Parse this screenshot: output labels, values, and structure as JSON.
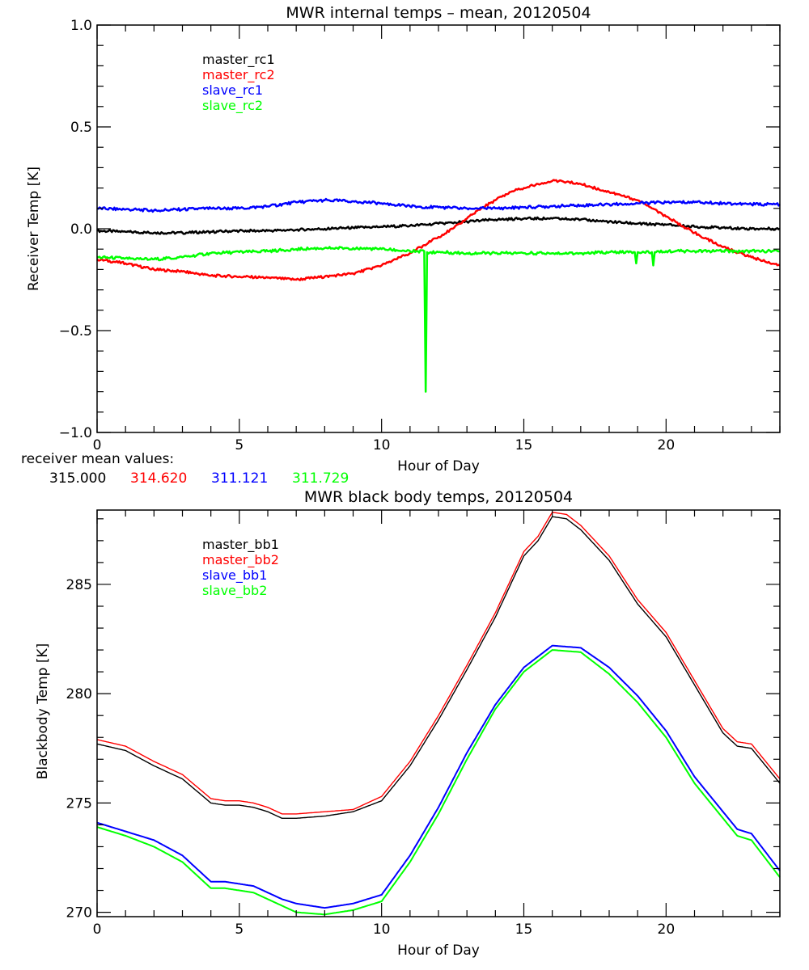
{
  "chart_data": [
    {
      "type": "line",
      "title": "MWR internal temps – mean, 20120504",
      "xlabel": "Hour of Day",
      "ylabel": "Receiver Temp [K]",
      "xlim": [
        0,
        24
      ],
      "ylim": [
        -1.0,
        1.0
      ],
      "x_ticks": [
        0,
        5,
        10,
        15,
        20
      ],
      "x_tick_labels": [
        "0",
        "5",
        "10",
        "15",
        "20"
      ],
      "y_ticks": [
        1.0,
        0.5,
        0.0,
        -0.5,
        -1.0
      ],
      "y_tick_labels": [
        "1.0",
        "0.5",
        "0.0",
        "−0.5",
        "−1.0"
      ],
      "x_minor_step": 1,
      "y_minor_step": 0.1,
      "grid": false,
      "legend_placement": "top-left",
      "series": [
        {
          "name": "master_rc1",
          "color": "#000000",
          "x": [
            0,
            1,
            2,
            3,
            4,
            5,
            6,
            7,
            8,
            9,
            10,
            11,
            12,
            13,
            14,
            15,
            16,
            17,
            18,
            19,
            20,
            21,
            22,
            23,
            24
          ],
          "values": [
            -0.01,
            -0.015,
            -0.02,
            -0.02,
            -0.015,
            -0.01,
            -0.01,
            -0.005,
            0.0,
            0.005,
            0.01,
            0.015,
            0.025,
            0.035,
            0.045,
            0.05,
            0.05,
            0.045,
            0.035,
            0.025,
            0.02,
            0.01,
            0.005,
            0.0,
            0.0
          ]
        },
        {
          "name": "master_rc2",
          "color": "#ff0000",
          "x": [
            0,
            1,
            2,
            3,
            4,
            5,
            6,
            7,
            8,
            9,
            10,
            10.5,
            11,
            11.5,
            12,
            12.5,
            13,
            13.5,
            14,
            14.5,
            15,
            15.5,
            16,
            16.5,
            17,
            18,
            19,
            19.5,
            20,
            21,
            22,
            23,
            24
          ],
          "values": [
            -0.15,
            -0.17,
            -0.2,
            -0.21,
            -0.23,
            -0.235,
            -0.24,
            -0.25,
            -0.235,
            -0.22,
            -0.18,
            -0.15,
            -0.12,
            -0.08,
            -0.04,
            0.0,
            0.05,
            0.1,
            0.14,
            0.18,
            0.2,
            0.22,
            0.235,
            0.23,
            0.22,
            0.18,
            0.14,
            0.1,
            0.06,
            -0.02,
            -0.09,
            -0.14,
            -0.18
          ]
        },
        {
          "name": "slave_rc1",
          "color": "#0000ff",
          "x": [
            0,
            1,
            2,
            3,
            4,
            5,
            6,
            7,
            8,
            9,
            10,
            11,
            12,
            13,
            14,
            15,
            16,
            17,
            18,
            19,
            20,
            21,
            22,
            23,
            24
          ],
          "values": [
            0.1,
            0.095,
            0.09,
            0.095,
            0.1,
            0.1,
            0.11,
            0.13,
            0.14,
            0.135,
            0.125,
            0.11,
            0.105,
            0.1,
            0.1,
            0.105,
            0.11,
            0.115,
            0.12,
            0.125,
            0.13,
            0.13,
            0.125,
            0.12,
            0.12
          ]
        },
        {
          "name": "slave_rc2",
          "color": "#00ff00",
          "x": [
            0,
            1,
            2,
            3,
            4,
            5,
            6,
            7,
            8,
            9,
            10,
            11,
            11.5,
            11.55,
            11.6,
            12,
            13,
            14,
            15,
            16,
            17,
            18,
            18.9,
            18.95,
            19,
            19.5,
            19.55,
            19.6,
            20,
            21,
            22,
            23,
            24
          ],
          "values": [
            -0.14,
            -0.145,
            -0.15,
            -0.14,
            -0.12,
            -0.115,
            -0.11,
            -0.1,
            -0.095,
            -0.095,
            -0.1,
            -0.11,
            -0.11,
            -0.8,
            -0.115,
            -0.115,
            -0.12,
            -0.12,
            -0.12,
            -0.12,
            -0.12,
            -0.115,
            -0.115,
            -0.17,
            -0.115,
            -0.115,
            -0.18,
            -0.115,
            -0.11,
            -0.11,
            -0.11,
            -0.11,
            -0.11
          ]
        }
      ],
      "annotation": {
        "label": "receiver mean values:",
        "values": [
          {
            "text": "315.000",
            "color": "#000000"
          },
          {
            "text": "314.620",
            "color": "#ff0000"
          },
          {
            "text": "311.121",
            "color": "#0000ff"
          },
          {
            "text": "311.729",
            "color": "#00ff00"
          }
        ]
      }
    },
    {
      "type": "line",
      "title": "MWR black body temps, 20120504",
      "xlabel": "Hour of Day",
      "ylabel": "Blackbody Temp [K]",
      "xlim": [
        0,
        24
      ],
      "ylim": [
        269.8,
        288.4
      ],
      "x_ticks": [
        0,
        5,
        10,
        15,
        20
      ],
      "x_tick_labels": [
        "0",
        "5",
        "10",
        "15",
        "20"
      ],
      "y_ticks": [
        270,
        275,
        280,
        285
      ],
      "y_tick_labels": [
        "270",
        "275",
        "280",
        "285"
      ],
      "x_minor_step": 1,
      "y_minor_step": 1,
      "grid": false,
      "legend_placement": "top-left",
      "series": [
        {
          "name": "master_bb1",
          "color": "#000000",
          "x": [
            0,
            1,
            2,
            3,
            4,
            4.5,
            5,
            5.5,
            6,
            6.5,
            7,
            8,
            9,
            10,
            11,
            12,
            13,
            14,
            15,
            15.5,
            16,
            16.5,
            17,
            18,
            19,
            20,
            21,
            22,
            22.5,
            23,
            24
          ],
          "values": [
            277.7,
            277.4,
            276.7,
            276.1,
            275.0,
            274.9,
            274.9,
            274.8,
            274.6,
            274.3,
            274.3,
            274.4,
            274.6,
            275.1,
            276.7,
            278.8,
            281.1,
            283.5,
            286.3,
            287.0,
            288.1,
            288.0,
            287.5,
            286.1,
            284.1,
            282.6,
            280.4,
            278.2,
            277.6,
            277.5,
            275.9
          ]
        },
        {
          "name": "master_bb2",
          "color": "#ff0000",
          "x": [
            0,
            1,
            2,
            3,
            4,
            4.5,
            5,
            5.5,
            6,
            6.5,
            7,
            8,
            9,
            10,
            11,
            12,
            13,
            14,
            15,
            15.5,
            16,
            16.5,
            17,
            18,
            19,
            20,
            21,
            22,
            22.5,
            23,
            24
          ],
          "values": [
            277.9,
            277.6,
            276.9,
            276.3,
            275.2,
            275.1,
            275.1,
            275.0,
            274.8,
            274.5,
            274.5,
            274.6,
            274.7,
            275.3,
            276.9,
            279.0,
            281.3,
            283.7,
            286.5,
            287.2,
            288.3,
            288.2,
            287.7,
            286.3,
            284.3,
            282.8,
            280.6,
            278.4,
            277.8,
            277.7,
            276.1
          ]
        },
        {
          "name": "slave_bb1",
          "color": "#0000ff",
          "x": [
            0,
            1,
            2,
            3,
            4,
            4.5,
            5,
            5.5,
            6,
            6.5,
            7,
            8,
            9,
            10,
            11,
            12,
            13,
            14,
            15,
            15.5,
            16,
            17,
            18,
            19,
            20,
            21,
            22,
            22.5,
            23,
            24
          ],
          "values": [
            274.1,
            273.7,
            273.3,
            272.6,
            271.4,
            271.4,
            271.3,
            271.2,
            270.9,
            270.6,
            270.4,
            270.2,
            270.4,
            270.8,
            272.6,
            274.8,
            277.3,
            279.5,
            281.2,
            281.7,
            282.2,
            282.1,
            281.2,
            279.9,
            278.3,
            276.2,
            274.6,
            273.8,
            273.6,
            271.9
          ]
        },
        {
          "name": "slave_bb2",
          "color": "#00ff00",
          "x": [
            0,
            1,
            2,
            3,
            4,
            4.5,
            5,
            5.5,
            6,
            6.5,
            7,
            8,
            9,
            10,
            11,
            12,
            13,
            14,
            15,
            15.5,
            16,
            17,
            18,
            19,
            20,
            21,
            22,
            22.5,
            23,
            24
          ],
          "values": [
            273.9,
            273.5,
            273.0,
            272.3,
            271.1,
            271.1,
            271.0,
            270.9,
            270.6,
            270.3,
            270.0,
            269.9,
            270.1,
            270.5,
            272.3,
            274.5,
            277.0,
            279.3,
            281.0,
            281.5,
            282.0,
            281.9,
            280.9,
            279.6,
            278.0,
            275.9,
            274.3,
            273.5,
            273.3,
            271.6
          ]
        }
      ]
    }
  ]
}
